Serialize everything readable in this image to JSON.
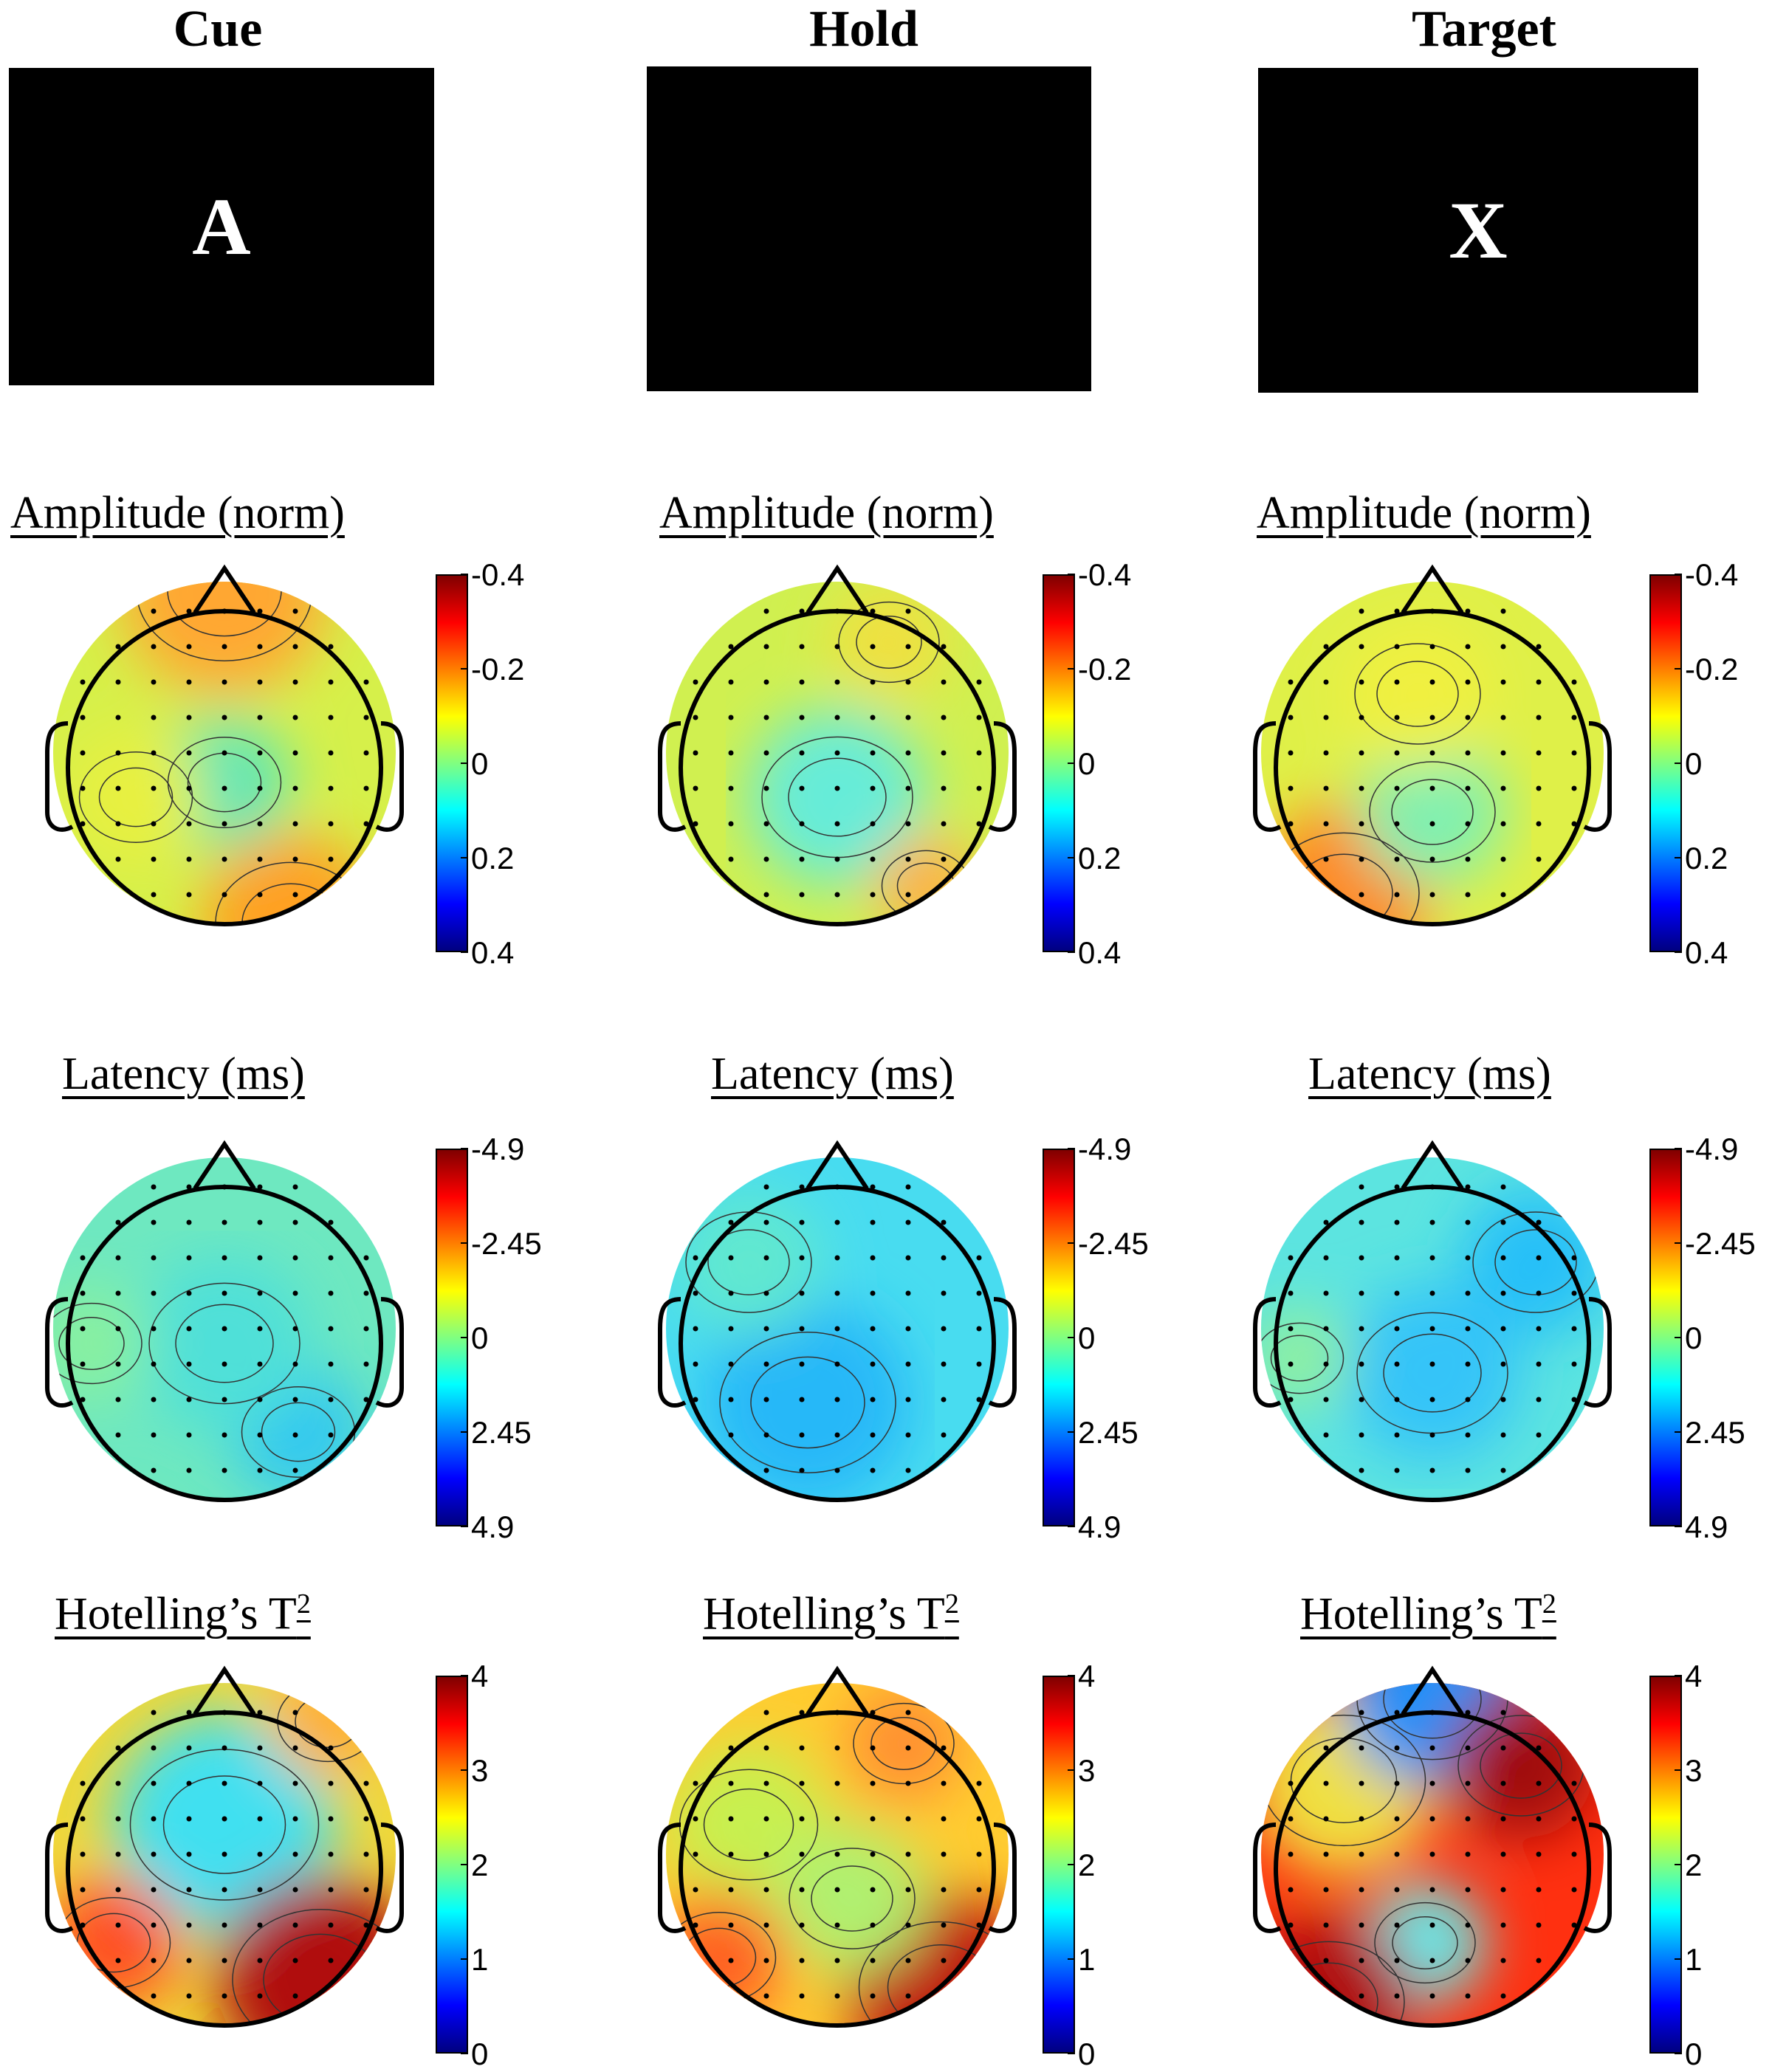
{
  "columns": [
    {
      "id": "cue",
      "title": "Cue",
      "screen_text": "A"
    },
    {
      "id": "hold",
      "title": "Hold",
      "screen_text": ""
    },
    {
      "id": "target",
      "title": "Target",
      "screen_text": "X"
    }
  ],
  "rows": [
    {
      "id": "amplitude",
      "label": "Amplitude (norm)",
      "ticks": [
        "-0.4",
        "-0.2",
        "0",
        "0.2",
        "0.4"
      ]
    },
    {
      "id": "latency",
      "label": "Latency (ms)",
      "ticks": [
        "-4.9",
        "-2.45",
        "0",
        "2.45",
        "4.9"
      ]
    },
    {
      "id": "hotelling",
      "label": "Hotelling’s T",
      "label_sup": "2",
      "ticks": [
        "4",
        "3",
        "2",
        "1",
        "0"
      ]
    }
  ],
  "colormap": "jet",
  "colormap_stops": [
    "#800000",
    "#ff0000",
    "#ffff00",
    "#00ffff",
    "#0000ff",
    "#000080"
  ],
  "head_outline_color": "#000000"
}
